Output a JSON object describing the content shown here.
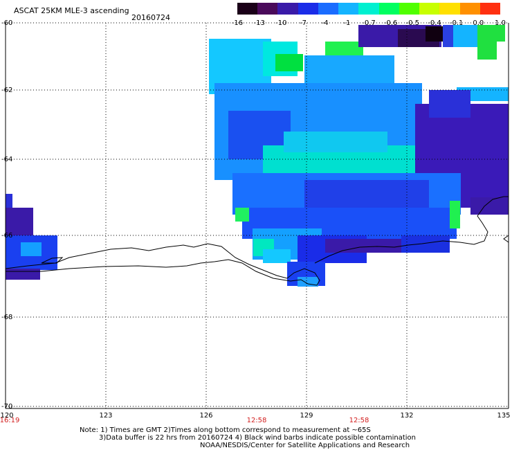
{
  "header": {
    "title": "ASCAT 25KM MLE-3 ascending",
    "date": "20160724"
  },
  "legend": {
    "labels": [
      "-16",
      "-13",
      "-10",
      "-7",
      "-4",
      "-1",
      "-0.7",
      "-0.6",
      "-0.5",
      "-0.4",
      "-0.1",
      "0.0",
      "1.0"
    ],
    "colors": [
      "#1a0018",
      "#4a0a5a",
      "#3a1aa8",
      "#1a2ce8",
      "#1a6cff",
      "#14b4ff",
      "#00f0d0",
      "#00ff60",
      "#50ff00",
      "#c8ff00",
      "#ffe000",
      "#ff9000",
      "#ff3010"
    ]
  },
  "axes": {
    "lat_labels": [
      "-60",
      "-62",
      "-64",
      "-66",
      "-68",
      "-70"
    ],
    "lon_labels": [
      "120",
      "123",
      "126",
      "129",
      "132",
      "135"
    ],
    "times": [
      "16:19",
      "12:58",
      "12:58"
    ]
  },
  "notes": {
    "line1": "Note: 1) Times are GMT 2)Times along bottom correspond to measurement at ~65S",
    "line2": "3)Data buffer is 22 hrs from 20160724 4) Black wind barbs indicate possible contamination",
    "line3": "NOAA/NESDIS/Center for Satellite Applications and Research"
  }
}
